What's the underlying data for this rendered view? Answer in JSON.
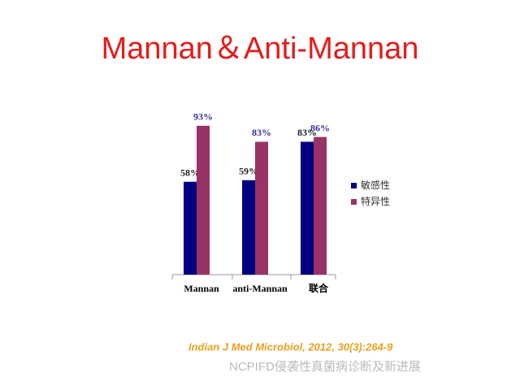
{
  "chart_data": {
    "type": "bar",
    "title": "Mannan＆Anti-Mannan",
    "categories": [
      "Mannan",
      "anti-Mannan",
      "联合"
    ],
    "series": [
      {
        "name": "敏感性",
        "color": "#000080",
        "values": [
          58,
          59,
          83
        ],
        "value_labels": [
          "58%",
          "59%",
          "83%"
        ]
      },
      {
        "name": "特异性",
        "color": "#993366",
        "values": [
          93,
          83,
          86
        ],
        "value_labels": [
          "93%",
          "83%",
          "86%"
        ]
      }
    ],
    "ylim": [
      0,
      100
    ],
    "legend": "right"
  },
  "citation": "Indian J Med Microbiol, 2012, 30(3):264-9",
  "watermark": "NCPIFD侵袭性真菌病诊断及新进展"
}
